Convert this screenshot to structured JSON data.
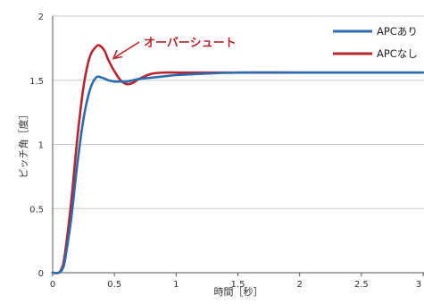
{
  "chart_data": {
    "type": "line",
    "xlabel": "時間［秒］",
    "ylabel": "ピッチ角［度］",
    "xlim": [
      0,
      3
    ],
    "ylim": [
      0,
      2
    ],
    "x_ticks": [
      "0",
      "0.5",
      "1",
      "1.5",
      "2",
      "2.5",
      "3"
    ],
    "y_ticks": [
      "0",
      "0.5",
      "1",
      "1.5",
      "2"
    ],
    "grid": "horizontal",
    "legend_position": "top-right",
    "annotation": {
      "text": "オーバーシュート",
      "points_to": {
        "x": 0.47,
        "y": 1.65
      }
    },
    "series": [
      {
        "name": "APCあり",
        "color": "#2b6cb0",
        "x": [
          0,
          0.05,
          0.08,
          0.1,
          0.15,
          0.2,
          0.25,
          0.3,
          0.35,
          0.4,
          0.45,
          0.5,
          0.55,
          0.6,
          0.65,
          0.7,
          0.8,
          0.9,
          1.0,
          1.2,
          1.5,
          2.0,
          2.5,
          3.0
        ],
        "y": [
          0,
          0,
          0.03,
          0.1,
          0.42,
          0.85,
          1.2,
          1.42,
          1.52,
          1.52,
          1.5,
          1.49,
          1.49,
          1.49,
          1.5,
          1.51,
          1.52,
          1.53,
          1.54,
          1.55,
          1.56,
          1.56,
          1.56,
          1.56
        ]
      },
      {
        "name": "APCなし",
        "color": "#b8252e",
        "x": [
          0,
          0.05,
          0.08,
          0.1,
          0.15,
          0.2,
          0.25,
          0.3,
          0.35,
          0.38,
          0.42,
          0.45,
          0.5,
          0.55,
          0.6,
          0.65,
          0.7,
          0.8,
          0.9,
          1.0,
          1.2,
          1.5,
          2.0,
          2.5,
          3.0
        ],
        "y": [
          0,
          0,
          0.05,
          0.15,
          0.55,
          1.05,
          1.45,
          1.68,
          1.76,
          1.77,
          1.73,
          1.66,
          1.57,
          1.5,
          1.47,
          1.48,
          1.51,
          1.55,
          1.56,
          1.56,
          1.56,
          1.56,
          1.56,
          1.56,
          1.56
        ]
      }
    ]
  }
}
